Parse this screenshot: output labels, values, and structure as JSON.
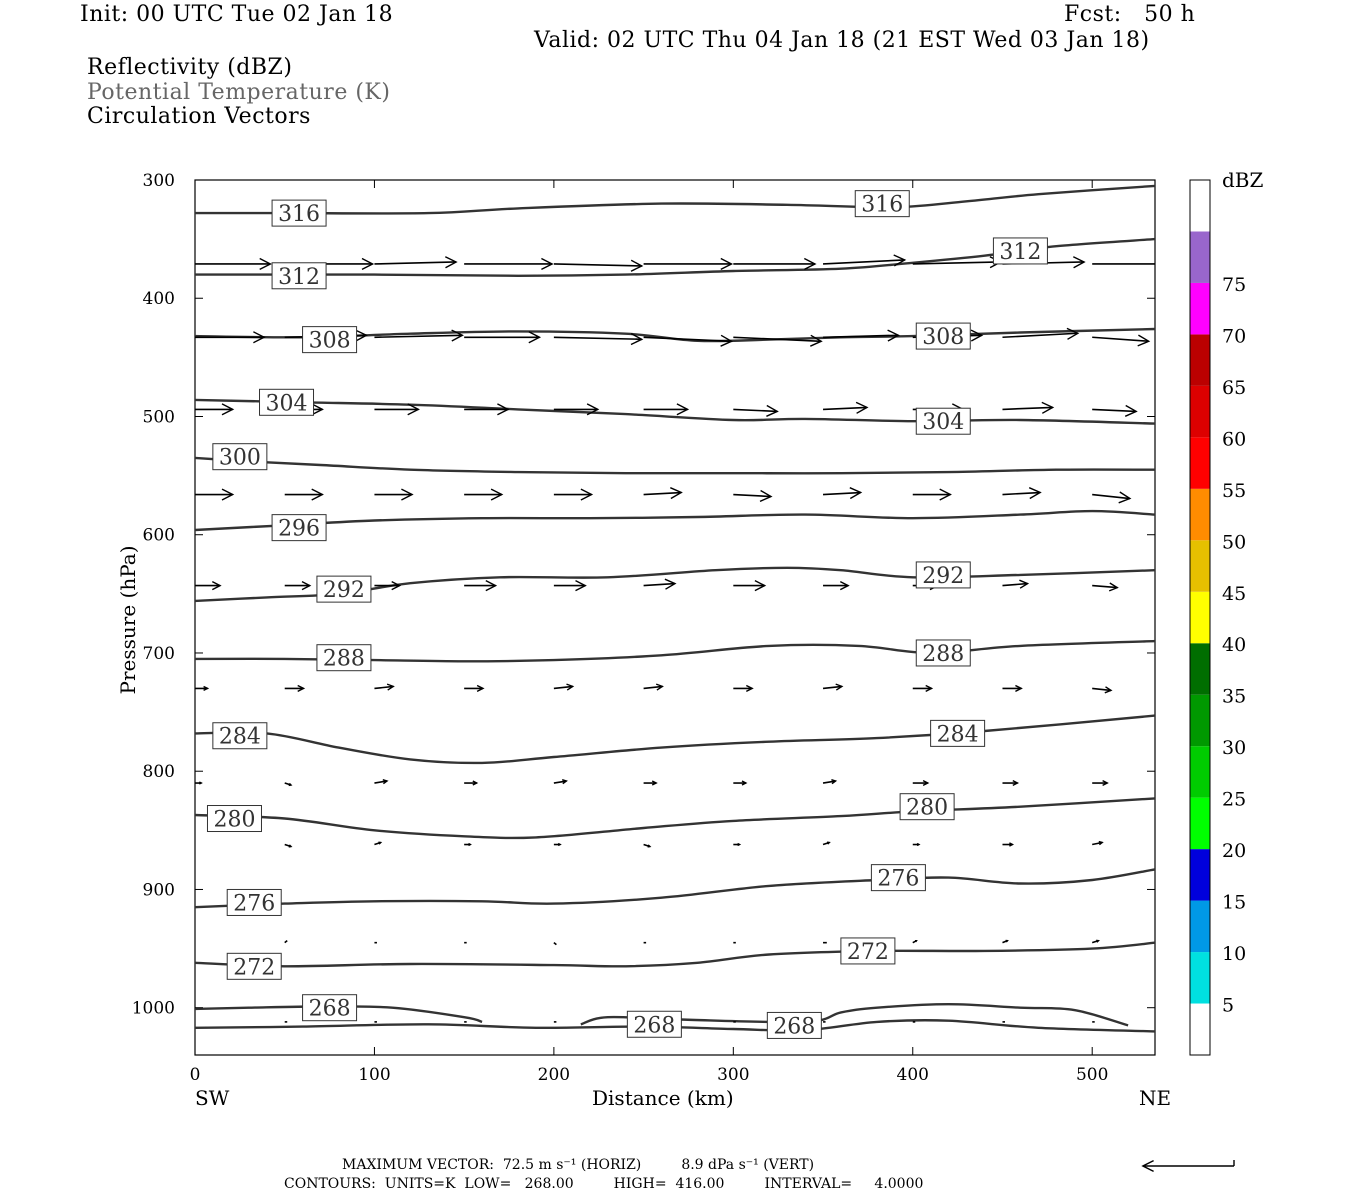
{
  "header": {
    "init": "Init: 00 UTC Tue 02 Jan 18",
    "fcst": "Fcst:   50 h",
    "valid": "Valid: 02 UTC Thu 04 Jan 18 (21 EST Wed 03 Jan 18)",
    "fields": [
      "Reflectivity (dBZ)",
      "Potential Temperature (K)",
      "Circulation Vectors"
    ]
  },
  "footer": {
    "max_vector": "MAXIMUM VECTOR:  72.5 m s⁻¹ (HORIZ)         8.9 dPa s⁻¹ (VERT)",
    "contours": "CONTOURS:  UNITS=K  LOW=   268.00         HIGH=  416.00         INTERVAL=     4.0000"
  },
  "colors": {
    "contour": "#333333",
    "vector": "#000000",
    "colorbar": [
      "#ffffff",
      "#00e0e0",
      "#0099e6",
      "#0000dd",
      "#00ff00",
      "#00cc00",
      "#009900",
      "#006e00",
      "#ffff00",
      "#e6c000",
      "#ff8c00",
      "#ff0000",
      "#dd0000",
      "#bb0000",
      "#ff00ff",
      "#9966cc",
      "#ffffff"
    ]
  },
  "chart_data": {
    "type": "cross-section",
    "title": "Reflectivity (dBZ), Potential Temperature (K), Circulation Vectors",
    "xlabel": "Distance (km)",
    "ylabel": "Pressure (hPa)",
    "xlim": [
      0,
      535
    ],
    "ylim": [
      1040,
      300
    ],
    "x_ticks": [
      0,
      100,
      200,
      300,
      400,
      500
    ],
    "y_ticks": [
      300,
      400,
      500,
      600,
      700,
      800,
      900,
      1000
    ],
    "x_left_label": "SW",
    "x_right_label": "NE",
    "colorbar": {
      "units": "dBZ",
      "levels": [
        5,
        10,
        15,
        20,
        25,
        30,
        35,
        40,
        45,
        50,
        55,
        60,
        65,
        70,
        75
      ]
    },
    "theta_contours": [
      {
        "value": 316,
        "x": [
          0,
          50,
          130,
          180,
          260,
          330,
          390,
          430,
          470,
          535
        ],
        "p": [
          328,
          328,
          328,
          324,
          320,
          321,
          323,
          318,
          312,
          305
        ],
        "labels": [
          [
            58,
            328
          ],
          [
            383,
            320
          ]
        ]
      },
      {
        "value": 312,
        "x": [
          0,
          100,
          180,
          240,
          300,
          360,
          400,
          440,
          480,
          535
        ],
        "p": [
          380,
          380,
          381,
          380,
          377,
          375,
          370,
          364,
          356,
          350
        ],
        "labels": [
          [
            58,
            381
          ],
          [
            460,
            360
          ]
        ]
      },
      {
        "value": 308,
        "x": [
          0,
          60,
          120,
          180,
          240,
          280,
          320,
          360,
          400,
          460,
          535
        ],
        "p": [
          432,
          433,
          430,
          428,
          430,
          436,
          435,
          433,
          432,
          429,
          426
        ],
        "labels": [
          [
            75,
            435
          ],
          [
            417,
            432
          ]
        ]
      },
      {
        "value": 304,
        "x": [
          0,
          60,
          120,
          180,
          240,
          300,
          340,
          400,
          460,
          535
        ],
        "p": [
          486,
          488,
          490,
          494,
          498,
          503,
          502,
          504,
          503,
          506
        ],
        "labels": [
          [
            51,
            488
          ],
          [
            417,
            504
          ]
        ]
      },
      {
        "value": 300,
        "x": [
          0,
          30,
          70,
          120,
          180,
          240,
          300,
          360,
          420,
          480,
          535
        ],
        "p": [
          535,
          538,
          541,
          545,
          547,
          548,
          548,
          548,
          547,
          545,
          545
        ],
        "labels": [
          [
            25,
            534
          ]
        ]
      },
      {
        "value": 296,
        "x": [
          0,
          50,
          100,
          160,
          220,
          280,
          340,
          400,
          460,
          500,
          535
        ],
        "p": [
          596,
          592,
          588,
          586,
          586,
          585,
          583,
          586,
          583,
          580,
          583
        ],
        "labels": [
          [
            58,
            594
          ]
        ]
      },
      {
        "value": 292,
        "x": [
          0,
          40,
          80,
          120,
          170,
          230,
          290,
          330,
          360,
          400,
          460,
          535
        ],
        "p": [
          656,
          653,
          650,
          641,
          636,
          636,
          630,
          628,
          630,
          636,
          634,
          630
        ],
        "labels": [
          [
            83,
            646
          ],
          [
            417,
            634
          ]
        ]
      },
      {
        "value": 288,
        "x": [
          0,
          50,
          100,
          150,
          200,
          260,
          320,
          370,
          410,
          460,
          535
        ],
        "p": [
          705,
          705,
          706,
          707,
          706,
          702,
          694,
          694,
          700,
          694,
          690
        ],
        "labels": [
          [
            83,
            704
          ],
          [
            417,
            700
          ]
        ]
      },
      {
        "value": 284,
        "x": [
          0,
          40,
          80,
          120,
          160,
          200,
          260,
          320,
          380,
          440,
          535
        ],
        "p": [
          768,
          768,
          780,
          790,
          793,
          788,
          780,
          775,
          772,
          766,
          753
        ],
        "labels": [
          [
            25,
            770
          ],
          [
            425,
            768
          ]
        ]
      },
      {
        "value": 280,
        "x": [
          0,
          50,
          100,
          150,
          190,
          250,
          300,
          360,
          400,
          460,
          535
        ],
        "p": [
          837,
          840,
          850,
          855,
          856,
          848,
          842,
          838,
          834,
          830,
          823
        ],
        "labels": [
          [
            22,
            840
          ],
          [
            408,
            830
          ]
        ]
      },
      {
        "value": 276,
        "x": [
          0,
          50,
          100,
          160,
          200,
          260,
          320,
          380,
          420,
          460,
          500,
          535
        ],
        "p": [
          915,
          912,
          910,
          910,
          912,
          907,
          897,
          892,
          890,
          895,
          892,
          883
        ],
        "labels": [
          [
            33,
            911
          ],
          [
            392,
            890
          ]
        ]
      },
      {
        "value": 272,
        "x": [
          0,
          50,
          120,
          200,
          240,
          280,
          320,
          380,
          440,
          500,
          535
        ],
        "p": [
          962,
          965,
          963,
          964,
          965,
          962,
          955,
          952,
          952,
          950,
          945
        ],
        "labels": [
          [
            33,
            965
          ],
          [
            375,
            952
          ]
        ]
      },
      {
        "value": 268,
        "x": [
          0,
          30,
          70,
          110,
          150,
          160
        ],
        "p": [
          1001,
          1000,
          999,
          1000,
          1008,
          1012
        ],
        "labels": [
          [
            75,
            1000
          ]
        ]
      },
      {
        "value": 268,
        "x": [
          215,
          230,
          270,
          340,
          360,
          380,
          420,
          460,
          490,
          520
        ],
        "p": [
          1014,
          1008,
          1010,
          1012,
          1004,
          1000,
          997,
          1000,
          1002,
          1015
        ],
        "labels": [
          [
            256,
            1014
          ],
          [
            334,
            1015
          ]
        ]
      },
      {
        "value": 268,
        "x": [
          0,
          60,
          130,
          190,
          250,
          300,
          340,
          380,
          420,
          470,
          535
        ],
        "p": [
          1017,
          1016,
          1014,
          1017,
          1016,
          1018,
          1019,
          1012,
          1011,
          1017,
          1020
        ],
        "labels": []
      }
    ],
    "vector_levels": [
      {
        "p": 371,
        "x": [
          0,
          50,
          100,
          150,
          200,
          250,
          300,
          350,
          400,
          450,
          500
        ],
        "du": [
          60,
          70,
          65,
          70,
          70,
          70,
          65,
          65,
          70,
          65,
          60
        ],
        "dv": [
          0,
          0,
          -1,
          0,
          1,
          0,
          0,
          -2,
          -1,
          -1,
          0
        ]
      },
      {
        "p": 433,
        "x": [
          0,
          50,
          100,
          150,
          200,
          250,
          300,
          350,
          400,
          450,
          500
        ],
        "du": [
          55,
          65,
          70,
          60,
          70,
          70,
          70,
          60,
          55,
          60,
          45
        ],
        "dv": [
          0,
          -1,
          -1,
          0,
          1,
          2,
          2,
          -1,
          -1,
          -2,
          2
        ]
      },
      {
        "p": 494,
        "x": [
          0,
          50,
          100,
          150,
          200,
          250,
          300,
          350,
          400,
          450,
          500
        ],
        "du": [
          30,
          30,
          35,
          35,
          35,
          35,
          35,
          35,
          40,
          40,
          35
        ],
        "dv": [
          0,
          0,
          0,
          0,
          0,
          0,
          1,
          -1,
          0,
          -1,
          1
        ]
      },
      {
        "p": 566,
        "x": [
          0,
          50,
          100,
          150,
          200,
          250,
          300,
          350,
          400,
          450,
          500
        ],
        "du": [
          30,
          30,
          30,
          30,
          30,
          30,
          30,
          30,
          30,
          30,
          30
        ],
        "dv": [
          0,
          0,
          0,
          0,
          0,
          -1,
          1,
          -1,
          0,
          -1,
          2
        ]
      },
      {
        "p": 643,
        "x": [
          0,
          50,
          100,
          150,
          200,
          250,
          300,
          350,
          400,
          450,
          500
        ],
        "du": [
          20,
          20,
          20,
          25,
          25,
          25,
          25,
          20,
          20,
          20,
          20
        ],
        "dv": [
          0,
          0,
          0,
          0,
          0,
          -1,
          0,
          0,
          0,
          -1,
          1
        ]
      },
      {
        "p": 730,
        "x": [
          0,
          50,
          100,
          150,
          200,
          250,
          300,
          350,
          400,
          450,
          500
        ],
        "du": [
          10,
          15,
          15,
          15,
          15,
          15,
          15,
          15,
          15,
          15,
          15
        ],
        "dv": [
          0,
          0,
          -1,
          0,
          -1,
          -1,
          0,
          -1,
          0,
          0,
          1
        ]
      },
      {
        "p": 810,
        "x": [
          0,
          50,
          100,
          150,
          200,
          250,
          300,
          350,
          400,
          450,
          500
        ],
        "du": [
          5,
          5,
          10,
          10,
          10,
          10,
          10,
          10,
          12,
          12,
          12
        ],
        "dv": [
          0,
          1,
          -1,
          0,
          -1,
          0,
          0,
          -1,
          0,
          0,
          0
        ]
      },
      {
        "p": 862,
        "x": [
          50,
          100,
          150,
          200,
          250,
          300,
          350,
          400,
          450,
          500
        ],
        "du": [
          5,
          5,
          5,
          5,
          5,
          5,
          5,
          5,
          8,
          8
        ],
        "dv": [
          1,
          -1,
          0,
          0,
          1,
          0,
          -1,
          0,
          0,
          -1
        ]
      },
      {
        "p": 945,
        "x": [
          50,
          100,
          150,
          200,
          250,
          300,
          350,
          400,
          450,
          500
        ],
        "du": [
          2,
          2,
          2,
          2,
          2,
          2,
          3,
          3,
          4,
          5
        ],
        "dv": [
          -1,
          0,
          0,
          1,
          0,
          0,
          0,
          -1,
          -1,
          -1
        ]
      },
      {
        "p": 1012,
        "x": [
          50,
          100,
          150,
          200,
          250,
          300,
          350,
          400,
          450,
          500
        ],
        "du": [
          2,
          2,
          2,
          2,
          2,
          2,
          2,
          2,
          2,
          2
        ],
        "dv": [
          0,
          0,
          0,
          0,
          0,
          0,
          0,
          0,
          0,
          0
        ]
      }
    ],
    "reference_vector": {
      "du": -72.5
    }
  }
}
